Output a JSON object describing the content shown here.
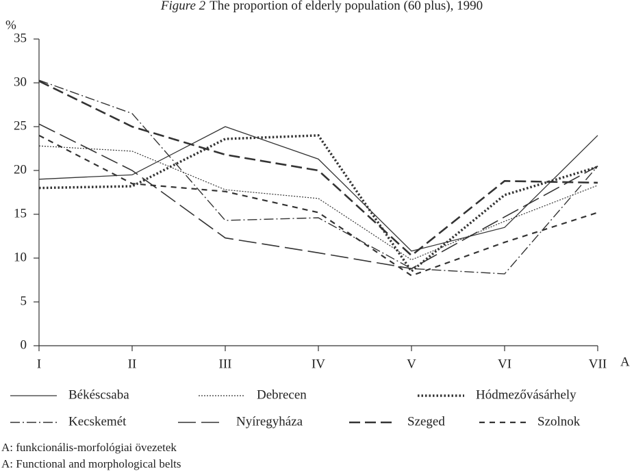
{
  "chart_data": {
    "type": "line",
    "figure_label": "Figure 2",
    "title": "The proportion of elderly population (60 plus), 1990",
    "y_label": "%",
    "x_label": "A",
    "categories": [
      "I",
      "II",
      "III",
      "IV",
      "V",
      "VI",
      "VII"
    ],
    "ylim": [
      0,
      35
    ],
    "yticks": [
      0,
      5,
      10,
      15,
      20,
      25,
      30,
      35
    ],
    "series": [
      {
        "name": "Békéscsaba",
        "color": "#333333",
        "style": "solid",
        "values": [
          19,
          19.5,
          25,
          21.3,
          10.8,
          13.5,
          24
        ]
      },
      {
        "name": "Debrecen",
        "color": "#333333",
        "style": "dotted",
        "values": [
          22.8,
          22.2,
          17.8,
          16.8,
          9.8,
          14.2,
          18.3
        ]
      },
      {
        "name": "Hódmezővásárhely",
        "color": "#333333",
        "style": "dotted-bold",
        "values": [
          18,
          18.2,
          23.6,
          24,
          8.5,
          17.2,
          20.4
        ]
      },
      {
        "name": "Kecskemét",
        "color": "#333333",
        "style": "dash-dot",
        "values": [
          30.3,
          26.5,
          14.3,
          14.6,
          8.8,
          8.2,
          20.5
        ]
      },
      {
        "name": "Nyíregyháza",
        "color": "#333333",
        "style": "long-dash",
        "values": [
          25.3,
          20,
          12.3,
          10.6,
          8.8,
          14.7,
          20.5
        ]
      },
      {
        "name": "Szeged",
        "color": "#333333",
        "style": "dash-bold",
        "values": [
          30.2,
          25,
          21.8,
          20,
          10.3,
          18.8,
          18.6
        ]
      },
      {
        "name": "Szolnok",
        "color": "#333333",
        "style": "dash",
        "values": [
          24,
          18.5,
          17.6,
          15.2,
          8,
          11.8,
          15.2
        ]
      }
    ],
    "notes": [
      "A: funkcionális-morfológiai övezetek",
      "A: Functional and morphological belts"
    ]
  }
}
